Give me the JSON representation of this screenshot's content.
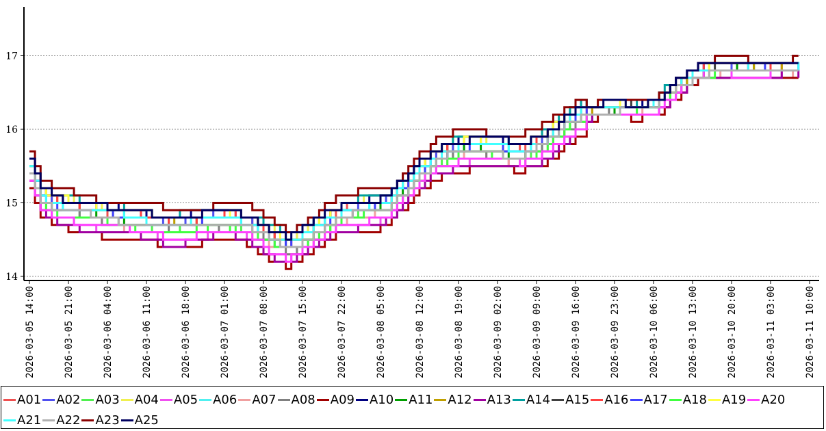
{
  "chart_data": {
    "type": "line",
    "step": true,
    "grid": "horizontal-dotted",
    "legend_placement": "bottom",
    "ylim": [
      13.9,
      17.6
    ],
    "y_ticks": [
      14,
      15,
      16,
      17
    ],
    "x_ticks": [
      "2026-03-05 14:00",
      "2026-03-05 21:00",
      "2026-03-06 04:00",
      "2026-03-06 11:00",
      "2026-03-06 18:00",
      "2026-03-07 01:00",
      "2026-03-07 08:00",
      "2026-03-07 15:00",
      "2026-03-07 22:00",
      "2026-03-08 05:00",
      "2026-03-08 12:00",
      "2026-03-08 19:00",
      "2026-03-09 02:00",
      "2026-03-09 09:00",
      "2026-03-09 16:00",
      "2026-03-09 23:00",
      "2026-03-10 06:00",
      "2026-03-10 13:00",
      "2026-03-10 20:00",
      "2026-03-11 03:00",
      "2026-03-11 10:00"
    ],
    "x_range_hours": [
      0,
      140
    ],
    "base_profile": {
      "hours": [
        0,
        1,
        2,
        4,
        7,
        10,
        14,
        18,
        22,
        26,
        30,
        36,
        40,
        43,
        46,
        48,
        52,
        56,
        60,
        64,
        68,
        72,
        76,
        80,
        84,
        88,
        92,
        96,
        98,
        100,
        104,
        108,
        112,
        116,
        120,
        124,
        128,
        132,
        136,
        138
      ],
      "values": [
        15.5,
        15.3,
        15.1,
        15.0,
        14.95,
        14.9,
        14.85,
        14.8,
        14.75,
        14.7,
        14.75,
        14.8,
        14.7,
        14.55,
        14.45,
        14.5,
        14.7,
        14.9,
        14.95,
        15.0,
        15.3,
        15.6,
        15.75,
        15.8,
        15.75,
        15.7,
        15.85,
        16.1,
        16.2,
        16.25,
        16.3,
        16.3,
        16.35,
        16.6,
        16.8,
        16.85,
        16.85,
        16.85,
        16.85,
        16.85
      ]
    },
    "series": [
      {
        "name": "A01",
        "color": "#f05050",
        "offset": 0.02
      },
      {
        "name": "A02",
        "color": "#5050f0",
        "offset": 0.05
      },
      {
        "name": "A03",
        "color": "#50f050",
        "offset": -0.08
      },
      {
        "name": "A04",
        "color": "#f0f050",
        "offset": 0.08
      },
      {
        "name": "A05",
        "color": "#f050f0",
        "offset": -0.2
      },
      {
        "name": "A06",
        "color": "#50f0f0",
        "offset": 0.0
      },
      {
        "name": "A07",
        "color": "#f0a0a0",
        "offset": -0.15
      },
      {
        "name": "A08",
        "color": "#808080",
        "offset": -0.1
      },
      {
        "name": "A09",
        "color": "#a00000",
        "offset": -0.3
      },
      {
        "name": "A10",
        "color": "#000080",
        "offset": 0.1
      },
      {
        "name": "A11",
        "color": "#00a000",
        "offset": -0.05
      },
      {
        "name": "A12",
        "color": "#c0a000",
        "offset": 0.03
      },
      {
        "name": "A13",
        "color": "#a000a0",
        "offset": -0.25
      },
      {
        "name": "A14",
        "color": "#00a0a0",
        "offset": 0.12
      },
      {
        "name": "A15",
        "color": "#404040",
        "offset": 0.06
      },
      {
        "name": "A16",
        "color": "#ff4040",
        "offset": 0.04
      },
      {
        "name": "A17",
        "color": "#4040ff",
        "offset": -0.02
      },
      {
        "name": "A18",
        "color": "#40ff40",
        "offset": -0.12
      },
      {
        "name": "A19",
        "color": "#ffff40",
        "offset": 0.07
      },
      {
        "name": "A20",
        "color": "#ff40ff",
        "offset": -0.18
      },
      {
        "name": "A21",
        "color": "#40ffff",
        "offset": 0.01
      },
      {
        "name": "A22",
        "color": "#b0b0b0",
        "offset": -0.07
      },
      {
        "name": "A23",
        "color": "#8b0000",
        "offset": 0.2
      },
      {
        "name": "A25",
        "color": "#000060",
        "offset": 0.09
      }
    ]
  }
}
